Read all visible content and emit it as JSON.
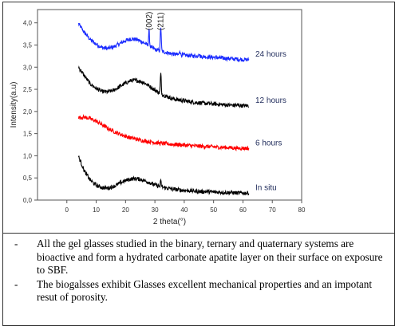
{
  "chart_data": {
    "type": "line",
    "xlabel": "2 theta(°)",
    "ylabel": "Intensity(a.u)",
    "xlim": [
      -10,
      80
    ],
    "ylim": [
      0.0,
      4.3
    ],
    "x_ticks": [
      "0",
      "10",
      "20",
      "30",
      "40",
      "50",
      "60",
      "70",
      "80"
    ],
    "y_ticks": [
      "0,0",
      "0,5",
      "1,0",
      "1,5",
      "2,0",
      "2,5",
      "3,0",
      "3,5",
      "4,0"
    ],
    "series": [
      {
        "name": "24 hours",
        "color": "#1a2bff",
        "x": [
          4,
          6,
          8,
          10,
          12,
          14,
          16,
          18,
          20,
          22,
          24,
          26,
          28,
          30,
          32,
          34,
          36,
          38,
          40,
          42,
          44,
          46,
          48,
          50,
          52,
          54,
          56,
          58,
          60,
          62
        ],
        "y": [
          3.98,
          3.78,
          3.62,
          3.52,
          3.44,
          3.42,
          3.46,
          3.53,
          3.6,
          3.64,
          3.62,
          3.56,
          3.48,
          3.4,
          3.36,
          3.33,
          3.3,
          3.28,
          3.27,
          3.26,
          3.25,
          3.24,
          3.23,
          3.22,
          3.21,
          3.2,
          3.19,
          3.18,
          3.17,
          3.17
        ]
      },
      {
        "name": "12 hours",
        "color": "#000000",
        "x": [
          4,
          6,
          8,
          10,
          12,
          14,
          16,
          18,
          20,
          22,
          24,
          26,
          28,
          30,
          32,
          34,
          36,
          38,
          40,
          42,
          44,
          46,
          48,
          50,
          52,
          54,
          56,
          58,
          60,
          62
        ],
        "y": [
          3.0,
          2.8,
          2.62,
          2.52,
          2.45,
          2.44,
          2.48,
          2.56,
          2.64,
          2.7,
          2.7,
          2.66,
          2.58,
          2.48,
          2.4,
          2.34,
          2.29,
          2.26,
          2.24,
          2.22,
          2.2,
          2.19,
          2.18,
          2.17,
          2.16,
          2.15,
          2.14,
          2.14,
          2.13,
          2.13
        ]
      },
      {
        "name": "6 hours",
        "color": "#ff0000",
        "x": [
          4,
          6,
          8,
          10,
          12,
          14,
          16,
          18,
          20,
          22,
          24,
          26,
          28,
          30,
          32,
          34,
          36,
          38,
          40,
          42,
          44,
          46,
          48,
          50,
          52,
          54,
          56,
          58,
          60,
          62
        ],
        "y": [
          1.86,
          1.87,
          1.84,
          1.78,
          1.7,
          1.62,
          1.55,
          1.49,
          1.44,
          1.4,
          1.37,
          1.34,
          1.32,
          1.3,
          1.28,
          1.27,
          1.26,
          1.25,
          1.24,
          1.23,
          1.22,
          1.21,
          1.21,
          1.2,
          1.19,
          1.19,
          1.18,
          1.17,
          1.17,
          1.17
        ]
      },
      {
        "name": "In situ",
        "color": "#000000",
        "x": [
          4,
          6,
          8,
          10,
          12,
          14,
          16,
          18,
          20,
          22,
          24,
          26,
          28,
          30,
          32,
          34,
          36,
          38,
          40,
          42,
          44,
          46,
          48,
          50,
          52,
          54,
          56,
          58,
          60,
          62
        ],
        "y": [
          0.98,
          0.65,
          0.45,
          0.33,
          0.28,
          0.27,
          0.31,
          0.38,
          0.44,
          0.48,
          0.48,
          0.45,
          0.4,
          0.34,
          0.3,
          0.27,
          0.25,
          0.23,
          0.22,
          0.21,
          0.2,
          0.19,
          0.19,
          0.18,
          0.18,
          0.17,
          0.17,
          0.16,
          0.16,
          0.16
        ]
      }
    ],
    "peaks": [
      {
        "series": 0,
        "x": 28,
        "height": 0.35
      },
      {
        "series": 0,
        "x": 32,
        "height": 0.55
      },
      {
        "series": 0,
        "x": 38.5,
        "height": 0.1
      },
      {
        "series": 0,
        "x": 45,
        "height": 0.08
      },
      {
        "series": 1,
        "x": 32,
        "height": 0.45
      },
      {
        "series": 3,
        "x": 32,
        "height": 0.12
      }
    ],
    "annotations": [
      {
        "text": "(002)",
        "x": 28
      },
      {
        "text": "(211)",
        "x": 32
      }
    ],
    "series_labels": [
      {
        "text": "24 hours",
        "series": 0
      },
      {
        "text": "12 hours",
        "series": 1
      },
      {
        "text": "6 hours",
        "series": 2
      },
      {
        "text": "In situ",
        "series": 3
      }
    ]
  },
  "bullets": {
    "dash": "-",
    "items": [
      "All the gel glasses studied in the binary, ternary and quaternary systems are bioactive and form a hydrated carbonate apatite layer on their surface on exposure to SBF.",
      "The biogalsses exhibit Glasses excellent mechanical properties and an impotant resut of porosity."
    ]
  }
}
